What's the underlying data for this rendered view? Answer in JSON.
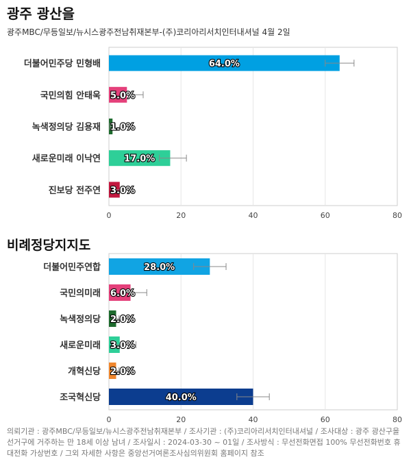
{
  "title": "광주 광산을",
  "subtitle": "광주MBC/무등일보/뉴시스광주전남취재본부-(주)코리아리서치인터내셔널 4월 2일",
  "footer": "의뢰기관 : 광주MBC/무등일보/뉴시스광주전남취재본부 / 조사기관 : (주)코리아리서치인터내셔널 / 조사대상 : 광주 광산구을 선거구에 거주하는 만 18세 이상 남녀 / 조사일시 : 2024-03-30 ~ 01일 / 조사방식 : 무선전화면접 100% 무선전화번호 휴대전화 가상번호 / 그외 자세한 사항은 중앙선거여론조사심의위원회 홈페이지 참조",
  "chart_data": [
    {
      "type": "bar",
      "orientation": "horizontal",
      "title": "",
      "categories": [
        "더불어민주당 민형배",
        "국민의힘 안태욱",
        "녹색정의당 김용재",
        "새로운미래 이낙연",
        "진보당 전주연"
      ],
      "values": [
        64.0,
        5.0,
        1.0,
        17.0,
        3.0
      ],
      "labels": [
        "64.0%",
        "5.0%",
        "1.0%",
        "17.0%",
        "3.0%"
      ],
      "error_low": [
        60.0,
        3.2,
        0.3,
        14.0,
        1.9
      ],
      "error_high": [
        68.0,
        9.5,
        1.8,
        21.5,
        4.2
      ],
      "colors": [
        "#00a0e2",
        "#e4407a",
        "#1e6b2e",
        "#2ecf98",
        "#c2183f"
      ],
      "xlim": [
        0,
        80
      ],
      "xticks": [
        "0",
        "20",
        "40",
        "60",
        "80"
      ],
      "grid": true
    },
    {
      "type": "bar",
      "orientation": "horizontal",
      "title": "비례정당지지도",
      "categories": [
        "더불어민주연합",
        "국민의미래",
        "녹색정의당",
        "새로운미래",
        "개혁신당",
        "조국혁신당"
      ],
      "values": [
        28.0,
        6.0,
        2.0,
        3.0,
        2.0,
        40.0
      ],
      "labels": [
        "28.0%",
        "6.0%",
        "2.0%",
        "3.0%",
        "2.0%",
        "40.0%"
      ],
      "error_low": [
        23.5,
        4.0,
        1.0,
        2.0,
        1.0,
        35.5
      ],
      "error_high": [
        32.5,
        10.5,
        2.8,
        7.5,
        2.8,
        44.5
      ],
      "colors": [
        "#11a4e3",
        "#e4407a",
        "#1e6b2e",
        "#2ecf98",
        "#f0872e",
        "#0c3d8f"
      ],
      "xlim": [
        0,
        80
      ],
      "xticks": [
        "0",
        "20",
        "40",
        "60",
        "80"
      ],
      "grid": true
    }
  ]
}
